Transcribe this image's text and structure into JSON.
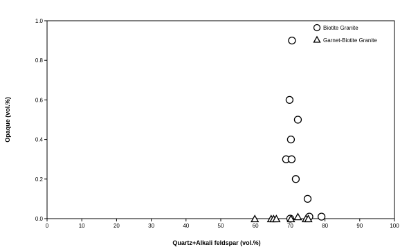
{
  "chart_data": {
    "type": "scatter",
    "xlabel": "Quartz+Alkali feldspar (vol.%)",
    "ylabel": "Opaque (vol.%)",
    "xlim": [
      0,
      100
    ],
    "ylim": [
      0,
      1.0
    ],
    "xticks": [
      "0",
      "10",
      "20",
      "30",
      "40",
      "50",
      "60",
      "70",
      "80",
      "90",
      "100"
    ],
    "yticks": [
      "0.0",
      "0.2",
      "0.4",
      "0.6",
      "0.8",
      "1.0"
    ],
    "grid": false,
    "legend_position": "top-right",
    "series": [
      {
        "name": "Biotite Granite",
        "marker": "circle",
        "points": [
          [
            70.5,
            0.9
          ],
          [
            69.8,
            0.6
          ],
          [
            72.2,
            0.5
          ],
          [
            70.2,
            0.4
          ],
          [
            68.8,
            0.3
          ],
          [
            70.4,
            0.3
          ],
          [
            71.6,
            0.2
          ],
          [
            75.0,
            0.1
          ],
          [
            75.5,
            0.01
          ],
          [
            79.0,
            0.01
          ],
          [
            70.0,
            0.0
          ]
        ]
      },
      {
        "name": "Garnet-Biotite Granite",
        "marker": "triangle",
        "points": [
          [
            59.8,
            0.0
          ],
          [
            64.5,
            0.0
          ],
          [
            65.2,
            0.0
          ],
          [
            66.0,
            0.0
          ],
          [
            70.2,
            0.0
          ],
          [
            72.2,
            0.01
          ],
          [
            74.5,
            0.0
          ],
          [
            75.2,
            0.0
          ]
        ]
      }
    ]
  }
}
